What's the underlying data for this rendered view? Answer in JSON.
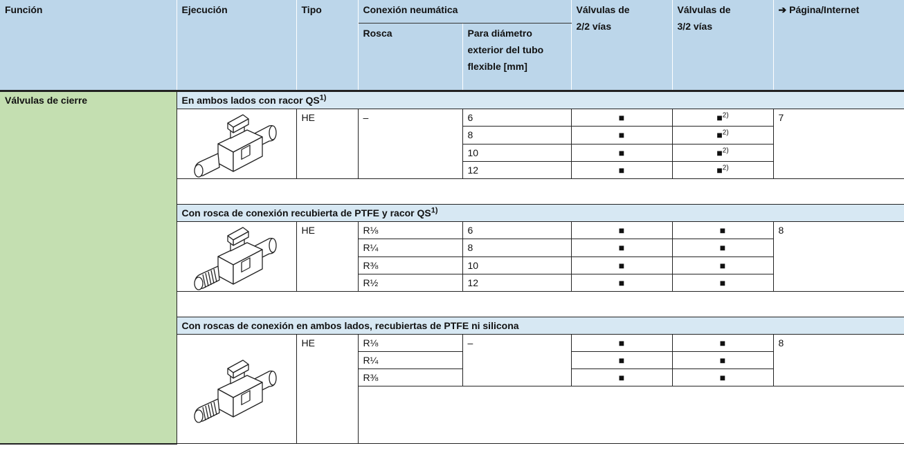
{
  "header": {
    "function": "Función",
    "execution": "Ejecución",
    "type": "Tipo",
    "pneumatic_connection": "Conexión neumática",
    "thread": "Rosca",
    "tube_diameter": [
      "Para diámetro",
      "exterior del tubo",
      "flexible [mm]"
    ],
    "valves_2_2": [
      "Válvulas de",
      "2/2 vías"
    ],
    "valves_3_2": [
      "Válvulas de",
      "3/2 vías"
    ],
    "page": "➔ Página/Internet"
  },
  "function": "Válvulas de cierre",
  "sections": [
    {
      "title": "En ambos lados con racor QS",
      "title_note": "1)",
      "type": "HE",
      "thread": "–",
      "page": "7",
      "rows": [
        {
          "diameter": "6",
          "valve_2_2": "■",
          "valve_3_2": "■",
          "note_3_2": "2)"
        },
        {
          "diameter": "8",
          "valve_2_2": "■",
          "valve_3_2": "■",
          "note_3_2": "2)"
        },
        {
          "diameter": "10",
          "valve_2_2": "■",
          "valve_3_2": "■",
          "note_3_2": "2)"
        },
        {
          "diameter": "12",
          "valve_2_2": "■",
          "valve_3_2": "■",
          "note_3_2": "2)"
        }
      ]
    },
    {
      "title": "Con rosca de conexión recubierta de PTFE y racor QS",
      "title_note": "1)",
      "type": "HE",
      "page": "8",
      "rows": [
        {
          "thread": "R⅛",
          "diameter": "6",
          "valve_2_2": "■",
          "valve_3_2": "■"
        },
        {
          "thread": "R¼",
          "diameter": "8",
          "valve_2_2": "■",
          "valve_3_2": "■"
        },
        {
          "thread": "R⅜",
          "diameter": "10",
          "valve_2_2": "■",
          "valve_3_2": "■"
        },
        {
          "thread": "R½",
          "diameter": "12",
          "valve_2_2": "■",
          "valve_3_2": "■"
        }
      ]
    },
    {
      "title": "Con roscas de conexión en ambos lados, recubiertas de PTFE ni silicona",
      "type": "HE",
      "diameter": "–",
      "page": "8",
      "rows": [
        {
          "thread": "R⅛",
          "valve_2_2": "■",
          "valve_3_2": "■"
        },
        {
          "thread": "R¼",
          "valve_2_2": "■",
          "valve_3_2": "■"
        },
        {
          "thread": "R⅜",
          "valve_2_2": "■",
          "valve_3_2": "■"
        }
      ]
    }
  ]
}
